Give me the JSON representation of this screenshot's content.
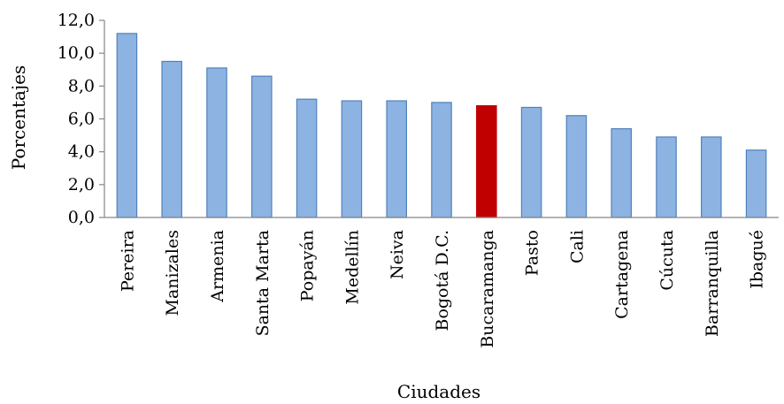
{
  "chart_data": {
    "type": "bar",
    "title": "",
    "xlabel": "Ciudades",
    "ylabel": "Porcentajes",
    "ylim": [
      0,
      12
    ],
    "yticks": [
      "0,0",
      "2,0",
      "4,0",
      "6,0",
      "8,0",
      "10,0",
      "12,0"
    ],
    "grid": false,
    "categories": [
      "Pereira",
      "Manizales",
      "Armenia",
      "Santa Marta",
      "Popayán",
      "Medellín",
      "Neiva",
      "Bogotá D.C.",
      "Bucaramanga",
      "Pasto",
      "Cali",
      "Cartagena",
      "Cúcuta",
      "Barranquilla",
      "Ibagué"
    ],
    "values": [
      11.2,
      9.5,
      9.1,
      8.6,
      7.2,
      7.1,
      7.1,
      7.0,
      6.8,
      6.7,
      6.2,
      5.4,
      4.9,
      4.9,
      4.1
    ],
    "highlight_category": "Bucaramanga",
    "colors": {
      "bar": "#8DB3E2",
      "bar_border": "#4F81BD",
      "highlight": "#C00000",
      "axis": "#868686"
    }
  }
}
